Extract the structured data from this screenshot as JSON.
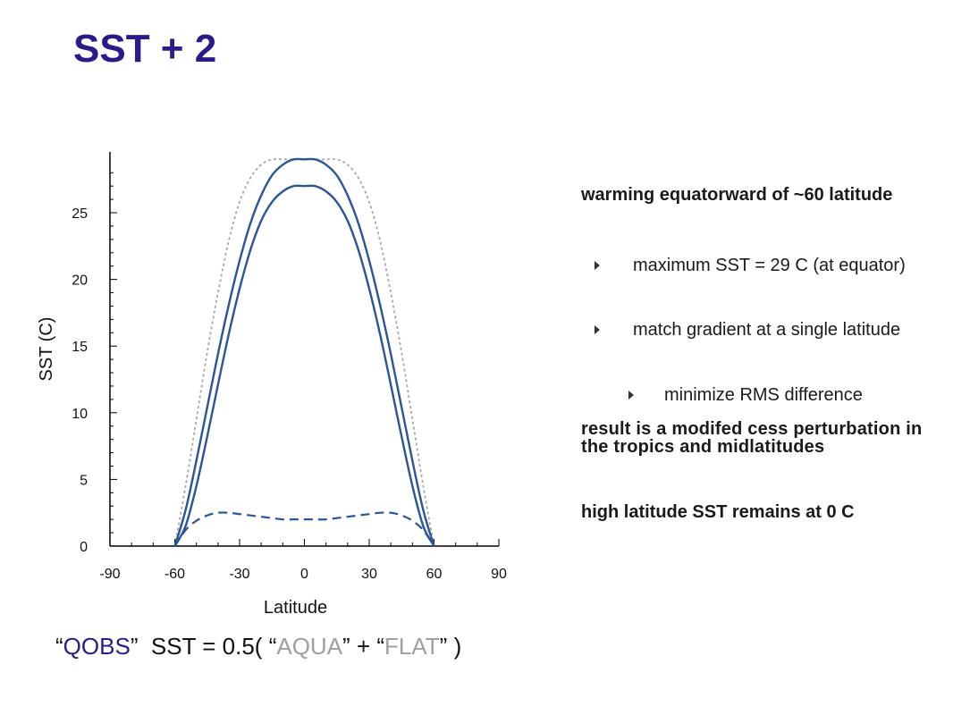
{
  "title": "SST + 2",
  "notes": {
    "p1": "warming equatorward  of ~60 latitude",
    "b1": "maximum SST = 29 C (at equator)",
    "b2": "match gradient at a single latitude",
    "b3": "minimize RMS difference",
    "p2": "result is a modifed cess perturbation in the tropics and midlatitudes",
    "p3": "high latitude SST remains at 0 C"
  },
  "formula": {
    "q_open": "“",
    "qobs": "QOBS",
    "q_close": "”",
    "eq": "  SST = 0.5( ",
    "aqua_open": "“",
    "aqua": "AQUA",
    "aqua_close": "”",
    "plus": " + ",
    "flat_open": "“",
    "flat": "FLAT",
    "flat_close": "”",
    "end": " )"
  },
  "chart_data": {
    "type": "line",
    "xlabel": "Latitude",
    "ylabel": "SST (C)",
    "xlim": [
      -90,
      90
    ],
    "ylim": [
      0,
      29
    ],
    "xticks": [
      -90,
      -60,
      -30,
      0,
      30,
      60,
      90
    ],
    "yticks": [
      0,
      5,
      10,
      15,
      20,
      25
    ],
    "grid": false,
    "colors": {
      "blue": "#2a5599",
      "gray": "#a8a8a8"
    },
    "series": [
      {
        "style": "gray-dotted",
        "x": [
          -60,
          -55,
          -50,
          -45,
          -40,
          -35,
          -30,
          -25,
          -20,
          -15,
          -10,
          -5,
          0,
          5,
          10,
          15,
          20,
          25,
          30,
          35,
          40,
          45,
          50,
          55,
          60
        ],
        "values": [
          0,
          4.5,
          9.5,
          14.5,
          19,
          22.9,
          25.8,
          27.6,
          28.6,
          29,
          29,
          29,
          29,
          29,
          29,
          29,
          28.6,
          27.6,
          25.8,
          22.9,
          19,
          14.5,
          9.5,
          4.5,
          0
        ]
      },
      {
        "style": "blue-solid",
        "x": [
          -60,
          -55,
          -50,
          -45,
          -40,
          -35,
          -30,
          -25,
          -20,
          -15,
          -10,
          -5,
          0,
          5,
          10,
          15,
          20,
          25,
          30,
          35,
          40,
          45,
          50,
          55,
          60
        ],
        "values": [
          0,
          2.7,
          6.4,
          10.4,
          14.4,
          18.1,
          21.4,
          24.2,
          26.3,
          27.8,
          28.6,
          29,
          29,
          29,
          28.6,
          27.8,
          26.3,
          24.2,
          21.4,
          18.1,
          14.4,
          10.4,
          6.4,
          2.7,
          0
        ]
      },
      {
        "style": "blue-solid",
        "x": [
          -60,
          -55,
          -50,
          -45,
          -40,
          -35,
          -30,
          -25,
          -20,
          -15,
          -10,
          -5,
          0,
          5,
          10,
          15,
          20,
          25,
          30,
          35,
          40,
          45,
          50,
          55,
          60
        ],
        "values": [
          0,
          1.5,
          4.5,
          8.2,
          12.1,
          15.9,
          19.3,
          22.2,
          24.4,
          25.8,
          26.6,
          27,
          27,
          27,
          26.6,
          25.8,
          24.4,
          22.2,
          19.3,
          15.9,
          12.1,
          8.2,
          4.5,
          1.5,
          0
        ]
      },
      {
        "style": "blue-dashed",
        "x": [
          -60,
          -55,
          -50,
          -45,
          -40,
          -35,
          -30,
          -25,
          -20,
          -15,
          -10,
          -5,
          0,
          5,
          10,
          15,
          20,
          25,
          30,
          35,
          40,
          45,
          50,
          55,
          60
        ],
        "values": [
          0,
          1.2,
          1.9,
          2.3,
          2.5,
          2.5,
          2.4,
          2.3,
          2.2,
          2.1,
          2.0,
          2.0,
          2.0,
          2.0,
          2.0,
          2.1,
          2.2,
          2.3,
          2.4,
          2.5,
          2.5,
          2.3,
          1.9,
          1.2,
          0
        ]
      }
    ]
  }
}
